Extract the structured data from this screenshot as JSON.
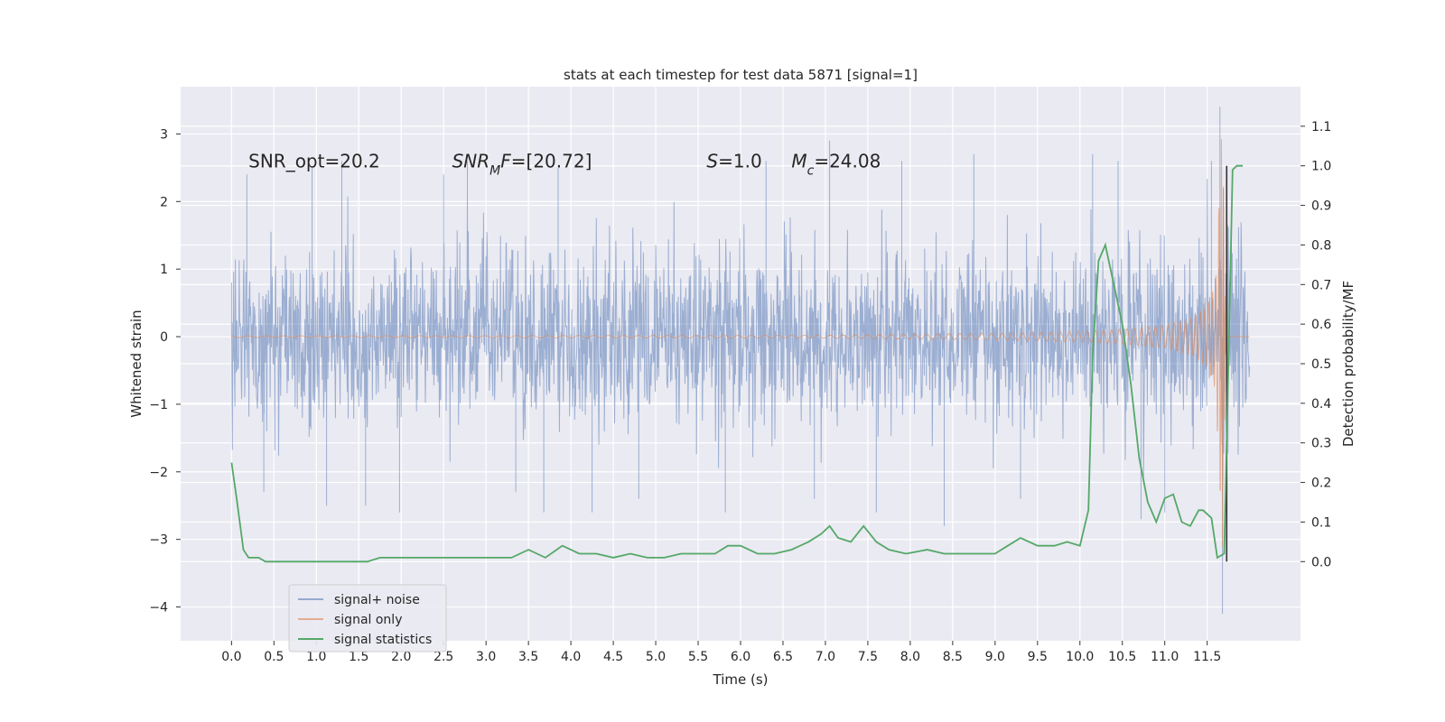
{
  "chart_data": {
    "type": "line",
    "title": "stats at each timestep for test data 5871 [signal=1]",
    "xlabel": "Time (s)",
    "ylabel": "Whitened strain",
    "y2label": "Detection probability/MF",
    "xlim": [
      -0.6,
      12.6
    ],
    "ylim": [
      -4.5,
      3.7
    ],
    "y2lim": [
      -0.2,
      1.2
    ],
    "x_ticks": [
      0.0,
      0.5,
      1.0,
      1.5,
      2.0,
      2.5,
      3.0,
      3.5,
      4.0,
      4.5,
      5.0,
      5.5,
      6.0,
      6.5,
      7.0,
      7.5,
      8.0,
      8.5,
      9.0,
      9.5,
      10.0,
      10.5,
      11.0,
      11.5
    ],
    "x_tick_labels": [
      "0.0",
      "0.5",
      "1.0",
      "1.5",
      "2.0",
      "2.5",
      "3.0",
      "3.5",
      "4.0",
      "4.5",
      "5.0",
      "5.5",
      "6.0",
      "6.5",
      "7.0",
      "7.5",
      "8.0",
      "8.5",
      "9.0",
      "9.5",
      "10.0",
      "10.5",
      "11.0",
      "11.5"
    ],
    "y_ticks": [
      3,
      2,
      1,
      0,
      -1,
      -2,
      -3,
      -4
    ],
    "y_tick_labels": [
      "3",
      "2",
      "1",
      "0",
      "−1",
      "−2",
      "−3",
      "−4"
    ],
    "y2_ticks": [
      1.1,
      1.0,
      0.9,
      0.8,
      0.7,
      0.6,
      0.5,
      0.4,
      0.3,
      0.2,
      0.1,
      0.0
    ],
    "y2_tick_labels": [
      "1.1",
      "1.0",
      "0.9",
      "0.8",
      "0.7",
      "0.6",
      "0.5",
      "0.4",
      "0.3",
      "0.2",
      "0.1",
      "0.0"
    ],
    "annotations": [
      {
        "text": "SNR_opt=20.2",
        "x": 0.2,
        "y": 2.6
      },
      {
        "text": "SNR_MF=[20.72]",
        "x": 2.6,
        "y": 2.6
      },
      {
        "text": "S=1.0",
        "x": 5.6,
        "y": 2.6
      },
      {
        "text": "M_c=24.08",
        "x": 6.6,
        "y": 2.6
      }
    ],
    "legend": {
      "position": "lower-left",
      "entries": [
        {
          "label": "signal+ noise",
          "color": "#4c72b0"
        },
        {
          "label": "signal only",
          "color": "#dd8452"
        },
        {
          "label": "signal statistics",
          "color": "#55a868"
        }
      ]
    },
    "series": [
      {
        "name": "signal+ noise",
        "axis": "left",
        "color": "#4c72b0",
        "t_range": [
          0.0,
          12.0
        ],
        "amplitude_envelope": {
          "x": [
            0.0,
            11.6,
            11.7,
            12.0
          ],
          "lower": [
            -1.9,
            -2.1,
            -4.1,
            -1.6
          ],
          "upper": [
            2.3,
            2.4,
            3.4,
            1.6
          ]
        },
        "notable_peaks": [
          {
            "x": 0.0,
            "y": 0.8
          },
          {
            "x": 0.18,
            "y": 2.4
          },
          {
            "x": 0.38,
            "y": -2.3
          },
          {
            "x": 0.95,
            "y": 2.5
          },
          {
            "x": 1.12,
            "y": -2.5
          },
          {
            "x": 1.3,
            "y": 2.6
          },
          {
            "x": 1.58,
            "y": -2.5
          },
          {
            "x": 1.98,
            "y": -2.6
          },
          {
            "x": 2.5,
            "y": 2.4
          },
          {
            "x": 2.78,
            "y": 2.6
          },
          {
            "x": 3.35,
            "y": -2.3
          },
          {
            "x": 3.68,
            "y": -2.6
          },
          {
            "x": 3.85,
            "y": 2.5
          },
          {
            "x": 4.25,
            "y": -2.6
          },
          {
            "x": 4.8,
            "y": -2.4
          },
          {
            "x": 5.82,
            "y": -2.6
          },
          {
            "x": 6.3,
            "y": 2.6
          },
          {
            "x": 6.87,
            "y": -2.4
          },
          {
            "x": 7.05,
            "y": 2.9
          },
          {
            "x": 7.6,
            "y": -2.6
          },
          {
            "x": 7.9,
            "y": 2.6
          },
          {
            "x": 8.4,
            "y": -2.8
          },
          {
            "x": 8.75,
            "y": 2.7
          },
          {
            "x": 9.3,
            "y": -2.4
          },
          {
            "x": 10.15,
            "y": 2.7
          },
          {
            "x": 10.45,
            "y": 2.6
          },
          {
            "x": 10.72,
            "y": -2.7
          },
          {
            "x": 11.0,
            "y": -2.6
          },
          {
            "x": 11.55,
            "y": 2.6
          },
          {
            "x": 11.65,
            "y": 3.4
          },
          {
            "x": 11.68,
            "y": -4.1
          }
        ]
      },
      {
        "name": "signal only",
        "axis": "left",
        "color": "#dd8452",
        "t_range": [
          0.0,
          12.0
        ],
        "amplitude_envelope": {
          "x": [
            0.0,
            7.0,
            9.0,
            10.0,
            10.5,
            11.0,
            11.3,
            11.5,
            11.6,
            11.68,
            11.72,
            12.0
          ],
          "amp": [
            0.01,
            0.02,
            0.05,
            0.08,
            0.11,
            0.17,
            0.26,
            0.45,
            0.8,
            3.3,
            0.0,
            0.0
          ]
        }
      },
      {
        "name": "signal statistics",
        "axis": "right",
        "color": "#55a868",
        "x": [
          0.0,
          0.06,
          0.14,
          0.2,
          0.26,
          0.32,
          0.4,
          0.5,
          0.7,
          1.0,
          1.2,
          1.4,
          1.6,
          1.75,
          1.9,
          2.1,
          2.3,
          2.5,
          2.7,
          2.9,
          3.1,
          3.3,
          3.5,
          3.7,
          3.9,
          4.1,
          4.3,
          4.5,
          4.7,
          4.9,
          5.1,
          5.3,
          5.5,
          5.7,
          5.85,
          6.0,
          6.2,
          6.4,
          6.6,
          6.8,
          6.95,
          7.05,
          7.15,
          7.3,
          7.45,
          7.6,
          7.75,
          7.95,
          8.2,
          8.4,
          8.6,
          8.8,
          9.0,
          9.15,
          9.3,
          9.5,
          9.7,
          9.85,
          10.0,
          10.1,
          10.15,
          10.22,
          10.3,
          10.4,
          10.5,
          10.6,
          10.7,
          10.8,
          10.9,
          11.0,
          11.1,
          11.2,
          11.3,
          11.4,
          11.45,
          11.55,
          11.62,
          11.7,
          11.75,
          11.8,
          11.85,
          11.92
        ],
        "y": [
          0.25,
          0.16,
          0.03,
          0.01,
          0.01,
          0.01,
          0.0,
          0.0,
          0.0,
          0.0,
          0.0,
          0.0,
          0.0,
          0.01,
          0.01,
          0.01,
          0.01,
          0.01,
          0.01,
          0.01,
          0.01,
          0.01,
          0.03,
          0.01,
          0.04,
          0.02,
          0.02,
          0.01,
          0.02,
          0.01,
          0.01,
          0.02,
          0.02,
          0.02,
          0.04,
          0.04,
          0.02,
          0.02,
          0.03,
          0.05,
          0.07,
          0.09,
          0.06,
          0.05,
          0.09,
          0.05,
          0.03,
          0.02,
          0.03,
          0.02,
          0.02,
          0.02,
          0.02,
          0.04,
          0.06,
          0.04,
          0.04,
          0.05,
          0.04,
          0.13,
          0.52,
          0.76,
          0.8,
          0.7,
          0.6,
          0.45,
          0.26,
          0.15,
          0.1,
          0.16,
          0.17,
          0.1,
          0.09,
          0.13,
          0.13,
          0.11,
          0.01,
          0.02,
          0.5,
          0.99,
          1.0,
          1.0
        ]
      }
    ],
    "vertical_lines": [
      {
        "x": 11.73,
        "y2_range": [
          0.0,
          1.0
        ],
        "color": "#333333"
      }
    ]
  }
}
